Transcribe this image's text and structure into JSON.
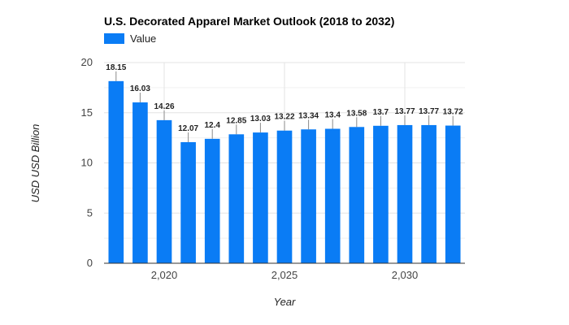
{
  "chart_data": {
    "type": "bar",
    "title": "U.S. Decorated Apparel Market Outlook (2018 to 2032)",
    "xlabel": "Year",
    "ylabel": "USD USD Billion",
    "x": [
      2018,
      2019,
      2020,
      2021,
      2022,
      2023,
      2024,
      2025,
      2026,
      2027,
      2028,
      2029,
      2030,
      2031,
      2032
    ],
    "series": [
      {
        "name": "Value",
        "values": [
          18.15,
          16.03,
          14.26,
          12.07,
          12.4,
          12.85,
          13.03,
          13.22,
          13.34,
          13.4,
          13.58,
          13.7,
          13.77,
          13.77,
          13.72
        ],
        "labels": [
          "18.15",
          "16.03",
          "14.26",
          "12.07",
          "12.4",
          "12.85",
          "13.03",
          "13.22",
          "13.34",
          "13.4",
          "13.58",
          "13.7",
          "13.77",
          "13.77",
          "13.72"
        ]
      }
    ],
    "ylim": [
      0,
      20
    ],
    "yticks": [
      0,
      5,
      10,
      15,
      20
    ],
    "xticks": [
      2020,
      2025,
      2030
    ],
    "xtick_labels": [
      "2,020",
      "2,025",
      "2,030"
    ],
    "legend": "top-left",
    "grid": true,
    "colors": {
      "bar": "#0a7cf5"
    }
  }
}
